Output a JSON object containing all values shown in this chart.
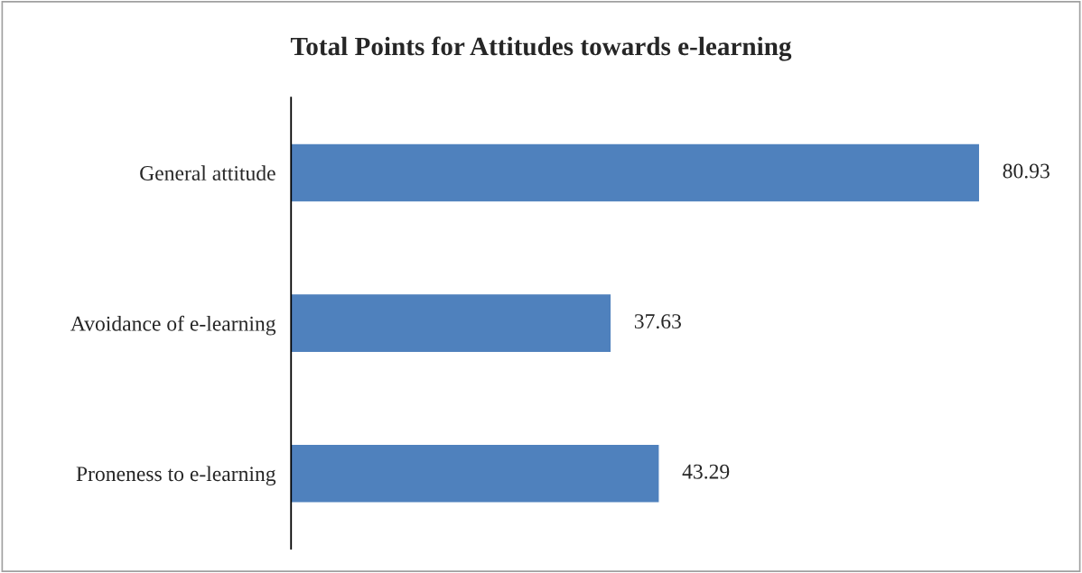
{
  "chart_data": {
    "type": "bar",
    "title": "Total Points for Attitudes towards e-learning",
    "orientation": "horizontal",
    "categories": [
      "General attitude",
      "Avoidance of e-learning",
      "Proneness to e-learning"
    ],
    "values": [
      80.93,
      37.63,
      43.29
    ],
    "color": "#4f81bd",
    "data_labels": true,
    "grid": false,
    "legend": false
  }
}
